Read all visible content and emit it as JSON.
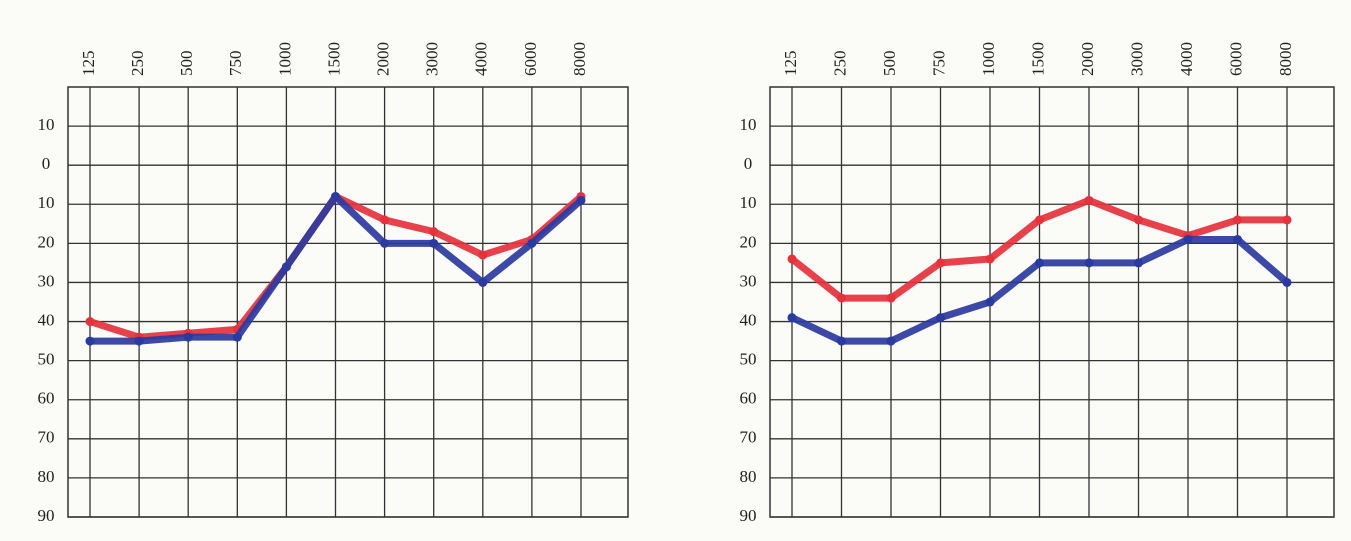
{
  "chart_data": [
    {
      "type": "line",
      "categories": [
        "125",
        "250",
        "500",
        "750",
        "1000",
        "1500",
        "2000",
        "3000",
        "4000",
        "6000",
        "8000"
      ],
      "series": [
        {
          "color": "#e5323c",
          "values": [
            40,
            44,
            43,
            42,
            26,
            8,
            14,
            17,
            23,
            19,
            8
          ]
        },
        {
          "color": "#2b3a9e",
          "values": [
            45,
            45,
            44,
            44,
            26,
            8,
            20,
            20,
            30,
            20,
            9
          ]
        }
      ],
      "ylim": [
        -20,
        90
      ],
      "y_inverted": true,
      "yticks": [
        {
          "value": -10,
          "label": "10"
        },
        0,
        10,
        20,
        30,
        40,
        50,
        60,
        70,
        80,
        90
      ],
      "grid": true
    },
    {
      "type": "line",
      "categories": [
        "125",
        "250",
        "500",
        "750",
        "1000",
        "1500",
        "2000",
        "3000",
        "4000",
        "6000",
        "8000"
      ],
      "series": [
        {
          "color": "#e5323c",
          "values": [
            24,
            34,
            34,
            25,
            24,
            14,
            9,
            14,
            18,
            14,
            14
          ]
        },
        {
          "color": "#2b3a9e",
          "values": [
            39,
            45,
            45,
            39,
            35,
            25,
            25,
            25,
            19,
            19,
            30
          ]
        }
      ],
      "ylim": [
        -20,
        90
      ],
      "y_inverted": true,
      "yticks": [
        {
          "value": -10,
          "label": "10"
        },
        0,
        10,
        20,
        30,
        40,
        50,
        60,
        70,
        80,
        90
      ],
      "grid": true
    }
  ]
}
